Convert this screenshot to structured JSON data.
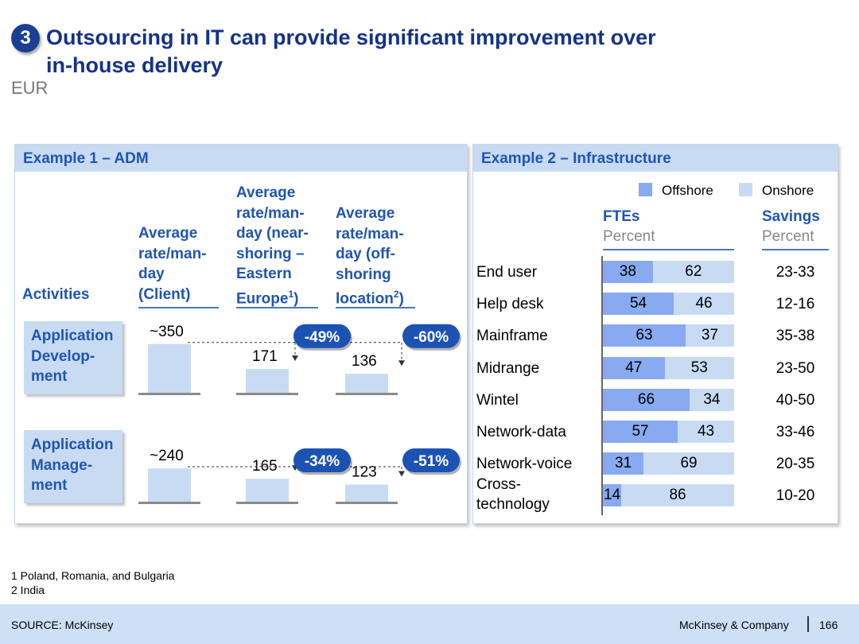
{
  "badge": "3",
  "title_lines": [
    "Outsourcing in IT can provide significant improvement over",
    "in-house delivery"
  ],
  "currency": "EUR",
  "example1": {
    "header": "Example 1 – ADM",
    "activities_label": "Activities",
    "col_client": [
      "Average",
      "rate/man-",
      "day",
      "(Client)"
    ],
    "col_near": [
      "Average",
      "rate/man-",
      "day (near-",
      "shoring –",
      "Eastern",
      "Europe"
    ],
    "col_near_sup": "1",
    "col_near_end": ")",
    "col_off": [
      "Average",
      "rate/man-",
      "day (off-",
      "shoring",
      "location"
    ],
    "col_off_sup": "2",
    "col_off_end": ")"
  },
  "example2": {
    "header": "Example 2 – Infrastructure",
    "legend_offshore": "Offshore",
    "legend_onshore": "Onshore",
    "ftes_title": "FTEs",
    "ftes_sub": "Percent",
    "savings_title": "Savings",
    "savings_sub": "Percent"
  },
  "chart_data": [
    {
      "type": "bar",
      "title": "Example 1 – ADM",
      "ylabel": "Average rate/man-day (EUR)",
      "categories": [
        "Client",
        "Near-shoring – Eastern Europe",
        "Off-shoring location"
      ],
      "series": [
        {
          "name": "Application Development",
          "labels": [
            "Application",
            "Develop-",
            "ment"
          ],
          "values": [
            350,
            171,
            136
          ],
          "value_labels": [
            "~350",
            "171",
            "136"
          ],
          "reductions": [
            "-49%",
            "-60%"
          ]
        },
        {
          "name": "Application Management",
          "labels": [
            "Application",
            "Manage-",
            "ment"
          ],
          "values": [
            240,
            165,
            123
          ],
          "value_labels": [
            "~240",
            "165",
            "123"
          ],
          "reductions": [
            "-34%",
            "-51%"
          ]
        }
      ]
    },
    {
      "type": "bar",
      "stacked": true,
      "orientation": "horizontal",
      "title": "Example 2 – Infrastructure",
      "xlabel": "FTEs, Percent",
      "categories": [
        "End user",
        "Help desk",
        "Mainframe",
        "Midrange",
        "Wintel",
        "Network-data",
        "Network-voice",
        "Cross-technology"
      ],
      "category_lines": [
        [
          "End user"
        ],
        [
          "Help desk"
        ],
        [
          "Mainframe"
        ],
        [
          "Midrange"
        ],
        [
          "Wintel"
        ],
        [
          "Network-data"
        ],
        [
          "Network-voice"
        ],
        [
          "Cross-",
          "technology"
        ]
      ],
      "series": [
        {
          "name": "Offshore",
          "color": "#88aaf0",
          "values": [
            38,
            54,
            63,
            47,
            66,
            57,
            31,
            14
          ]
        },
        {
          "name": "Onshore",
          "color": "#c8dbf3",
          "values": [
            62,
            46,
            37,
            53,
            34,
            43,
            69,
            86
          ]
        }
      ],
      "savings_percent": [
        "23-33",
        "12-16",
        "35-38",
        "23-50",
        "40-50",
        "33-46",
        "20-35",
        "10-20"
      ],
      "xlim": [
        0,
        100
      ]
    }
  ],
  "footnotes": [
    "1 Poland, Romania, and Bulgaria",
    "2 India"
  ],
  "source": "SOURCE: McKinsey",
  "company": "McKinsey & Company",
  "page_number": "166"
}
